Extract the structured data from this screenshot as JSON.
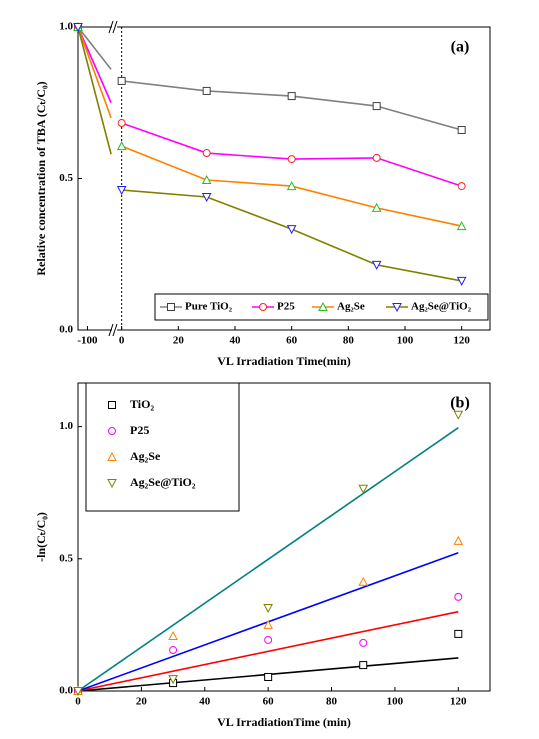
{
  "chart_data": [
    {
      "type": "line",
      "panel_label": "(a)",
      "y_label": "Relative concentration of TBA (Cₜ/C₀)",
      "x_label": "VL Irradiation Time(min)",
      "x_dark": [
        -120,
        -50
      ],
      "xlim_dark": [
        -120,
        -46
      ],
      "xticks_dark": [
        -100
      ],
      "x": [
        0,
        30,
        60,
        90,
        120
      ],
      "xlim": [
        -2,
        130
      ],
      "xticks": [
        0,
        20,
        40,
        60,
        80,
        100,
        120
      ],
      "ylim": [
        0,
        1
      ],
      "yticks": [
        {
          "value": 0,
          "label": "0.0"
        },
        {
          "value": 0.5,
          "label": "0.5"
        },
        {
          "value": 1,
          "label": "1.0"
        }
      ],
      "legend": "lower right",
      "series": [
        {
          "name": "Pure TiO₂",
          "color": "#808080",
          "marker": "square",
          "marker_color": "#404040",
          "dark_values": [
            1.0,
            0.86
          ],
          "values": [
            0.822,
            0.789,
            0.772,
            0.739,
            0.66
          ]
        },
        {
          "name": "P25",
          "color": "#ff00ff",
          "marker": "circle",
          "marker_color": "#ff2020",
          "dark_values": [
            1.0,
            0.75
          ],
          "values": [
            0.683,
            0.584,
            0.564,
            0.568,
            0.475
          ]
        },
        {
          "name": "Ag₂Se",
          "color": "#ff8000",
          "marker": "triangle-up",
          "marker_color": "#20c020",
          "dark_values": [
            1.0,
            0.7
          ],
          "values": [
            0.607,
            0.495,
            0.475,
            0.403,
            0.343
          ]
        },
        {
          "name": "Ag₂Se@TiO₂",
          "color": "#808000",
          "marker": "triangle-down",
          "marker_color": "#2020ff",
          "dark_values": [
            1.0,
            0.58
          ],
          "values": [
            0.462,
            0.439,
            0.333,
            0.215,
            0.162
          ]
        }
      ]
    },
    {
      "type": "scatter",
      "panel_label": "(b)",
      "y_label": "-ln(Cₜ/C₀)",
      "x_label": "VL IrradiationTime (min)",
      "x": [
        0,
        30,
        60,
        90,
        120
      ],
      "xlim": [
        0,
        130
      ],
      "xticks": [
        0,
        20,
        40,
        60,
        80,
        100,
        120
      ],
      "ylim": [
        0,
        1.165
      ],
      "yticks": [
        {
          "value": 0,
          "label": "0.0"
        },
        {
          "value": 0.5,
          "label": "0.5"
        },
        {
          "value": 1,
          "label": "1.0"
        }
      ],
      "legend": "upper left",
      "series": [
        {
          "name": "TiO₂",
          "color": "#000000",
          "marker": "square",
          "values": [
            0,
            0.03,
            0.053,
            0.098,
            0.216
          ],
          "fit_color": "#000000",
          "fit": [
            0,
            0.125
          ]
        },
        {
          "name": "P25",
          "color": "#ff00ff",
          "marker": "circle",
          "values": [
            0,
            0.155,
            0.193,
            0.182,
            0.356
          ],
          "fit_color": "#ff0000",
          "fit": [
            0,
            0.3
          ]
        },
        {
          "name": "Ag₂Se",
          "color": "#ff8000",
          "marker": "triangle-up",
          "values": [
            0,
            0.208,
            0.25,
            0.413,
            0.568
          ],
          "fit_color": "#0000ff",
          "fit": [
            0,
            0.523
          ]
        },
        {
          "name": "Ag₂Se@TiO₂",
          "color": "#808000",
          "marker": "triangle-down",
          "values": [
            0,
            0.045,
            0.314,
            0.765,
            1.045
          ],
          "fit_color": "#008080",
          "fit": [
            0,
            0.996
          ]
        }
      ]
    }
  ]
}
